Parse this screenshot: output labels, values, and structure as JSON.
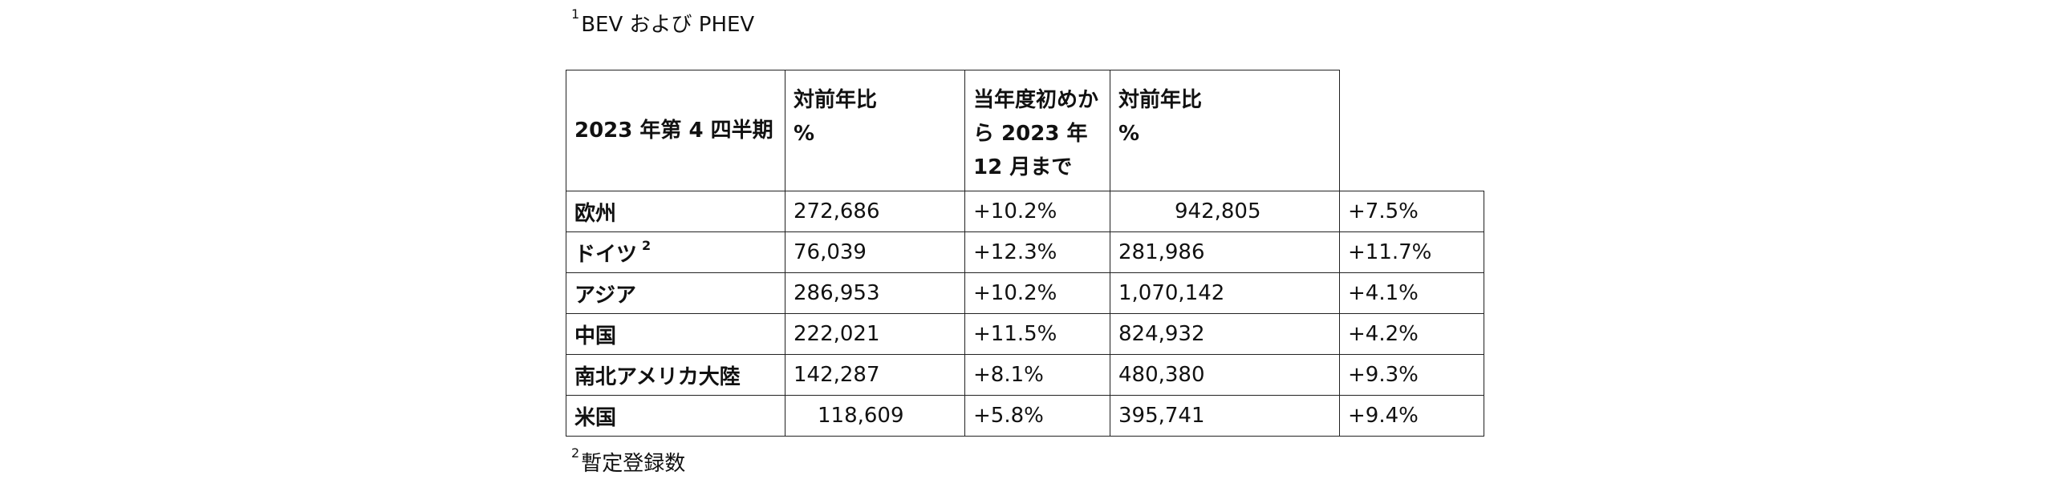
{
  "footnotes": [
    {
      "mark": "1",
      "text": "BEV および PHEV"
    },
    {
      "mark": "2",
      "text": "暫定登録数"
    }
  ],
  "table": {
    "header": [
      [
        "2023 年第 4 四半期"
      ],
      [
        "対前年比",
        "%"
      ],
      [
        "当年度初めか",
        "ら 2023 年",
        "12 月まで"
      ],
      [
        "対前年比",
        "%"
      ]
    ],
    "rows": [
      {
        "label": "欧州",
        "cells": [
          "272,686",
          "+10.2%",
          "942,805",
          "+7.5%"
        ]
      },
      {
        "label": "ドイツ",
        "note": "2",
        "cells": [
          "76,039",
          "+12.3%",
          "281,986",
          "+11.7%"
        ]
      },
      {
        "label": "アジア",
        "cells": [
          "286,953",
          "+10.2%",
          "1,070,142",
          "+4.1%"
        ]
      },
      {
        "label": "中国",
        "cells": [
          "222,021",
          "+11.5%",
          "824,932",
          "+4.2%"
        ]
      },
      {
        "label": "南北アメリカ大陸",
        "cells": [
          "142,287",
          "+8.1%",
          "480,380",
          "+9.3%"
        ]
      },
      {
        "label": "米国",
        "cells": [
          "118,609",
          "+5.8%",
          "395,741",
          "+9.4%"
        ]
      }
    ]
  }
}
